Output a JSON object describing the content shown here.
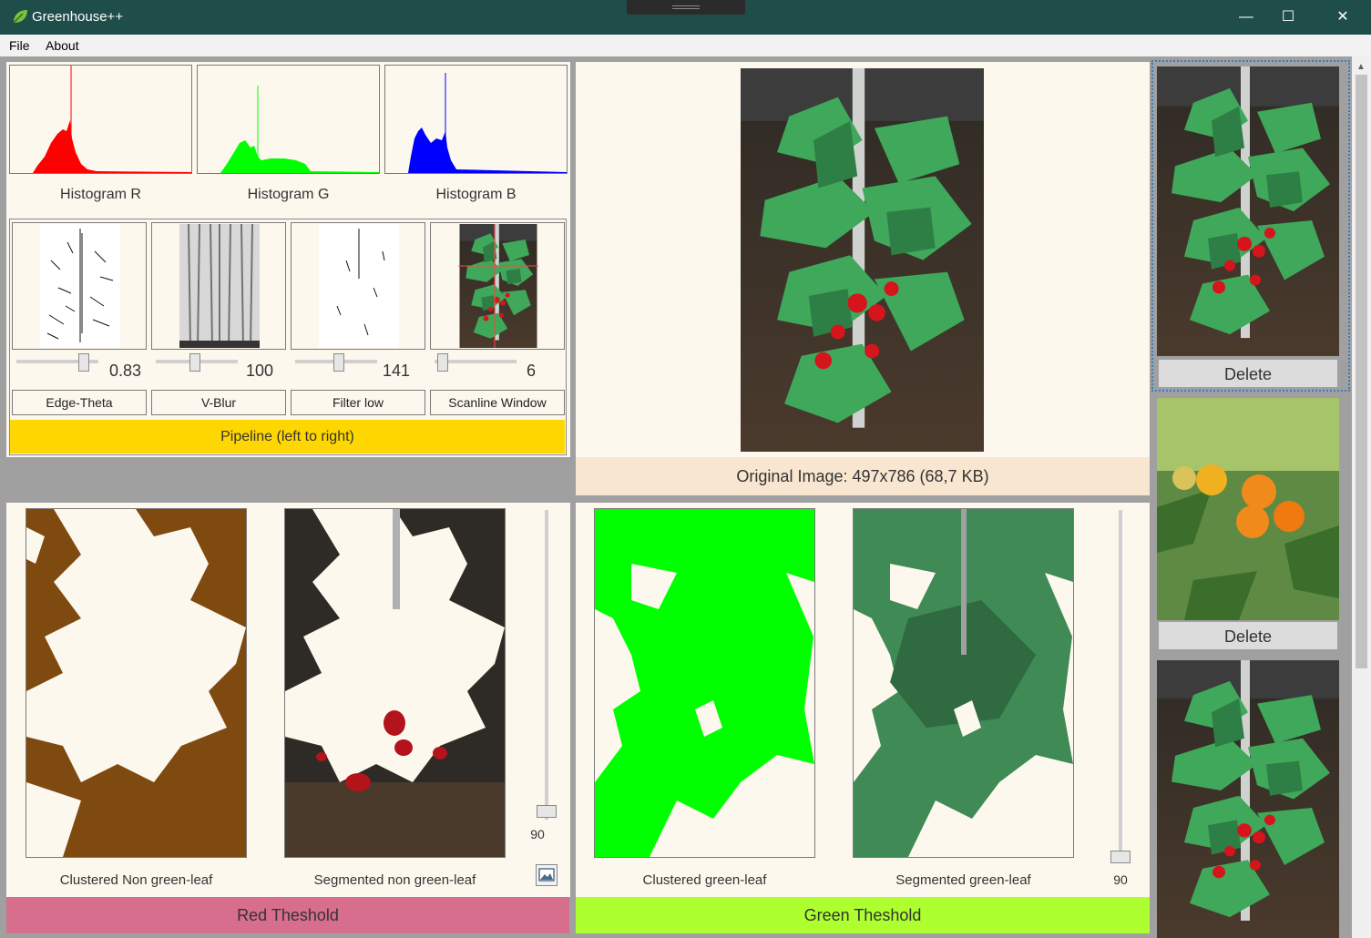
{
  "window": {
    "title": "Greenhouse++",
    "minimize_glyph": "—",
    "maximize_glyph": "☐",
    "close_glyph": "✕"
  },
  "menu": [
    "File",
    "About"
  ],
  "histograms": [
    {
      "label": "Histogram R",
      "color": "#ff0000"
    },
    {
      "label": "Histogram G",
      "color": "#00ff00"
    },
    {
      "label": "Histogram B",
      "color": "#0000ff"
    }
  ],
  "pipeline": {
    "steps": [
      {
        "button": "Edge-Theta",
        "value": "0.83",
        "level": 0.83
      },
      {
        "button": "V-Blur",
        "value": "100",
        "level": 0.5
      },
      {
        "button": "Filter low",
        "value": "141",
        "level": 0.55
      },
      {
        "button": "Scanline Window",
        "value": "6",
        "level": 0.1
      }
    ],
    "run_label": "Pipeline (left to right)"
  },
  "original": {
    "caption": "Original Image: 497x786 (68,7 KB)"
  },
  "red_section": {
    "left_caption": "Clustered Non green-leaf",
    "right_caption": "Segmented non green-leaf",
    "slider_value": "90",
    "button": "Red Theshold",
    "icon": "image-icon"
  },
  "green_section": {
    "left_caption": "Clustered green-leaf",
    "right_caption": "Segmented green-leaf",
    "slider_value": "90",
    "button": "Green Theshold"
  },
  "gallery": {
    "delete_label": "Delete"
  },
  "colors": {
    "titlebar": "#1e4d4a",
    "panel": "#fdf8ee",
    "pipeline": "#ffd700",
    "red_bar": "#d86e8e",
    "green_bar": "#adff2f",
    "brown_cluster": "#7f4a10",
    "green_cluster": "#00ff00"
  }
}
